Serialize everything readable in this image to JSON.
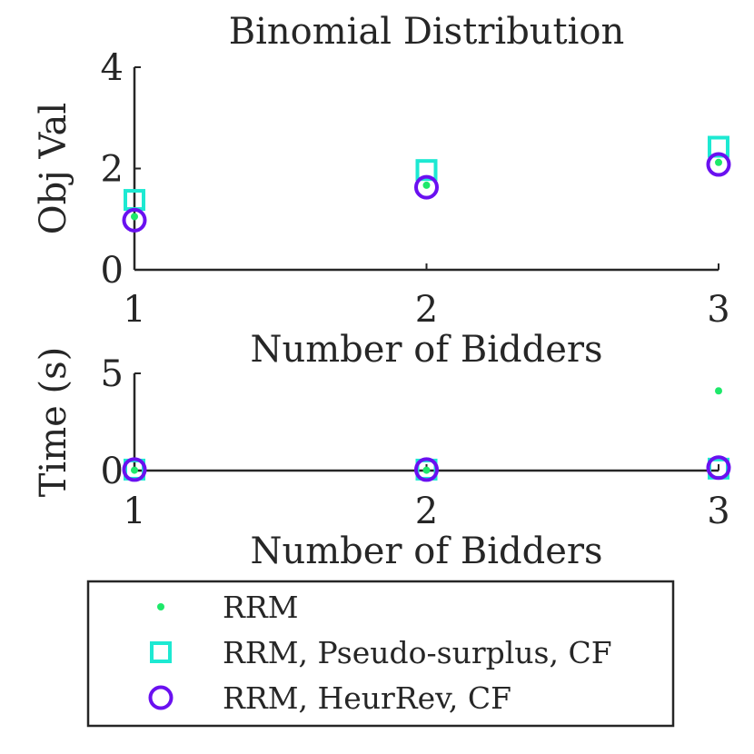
{
  "chart_data": [
    {
      "type": "scatter",
      "title": "Binomial Distribution",
      "xlabel": "Number of Bidders",
      "ylabel": "Obj Val",
      "xlim": [
        1,
        3
      ],
      "ylim": [
        0,
        4
      ],
      "xticks": [
        "1",
        "2",
        "3"
      ],
      "yticks": [
        "0",
        "2",
        "4"
      ],
      "x": [
        1,
        2,
        3
      ],
      "series": [
        {
          "name": "RRM",
          "marker": "dot",
          "color": "#1ee86a",
          "values": [
            1.05,
            1.67,
            2.12
          ]
        },
        {
          "name": "RRM, Pseudo-surplus, CF",
          "marker": "square",
          "color": "#1de9d2",
          "values": [
            1.38,
            1.97,
            2.43
          ]
        },
        {
          "name": "RRM, HeurRev, CF",
          "marker": "circle",
          "color": "#6a10f0",
          "values": [
            0.98,
            1.63,
            2.08
          ]
        }
      ]
    },
    {
      "type": "scatter",
      "title": "",
      "xlabel": "Number of Bidders",
      "ylabel": "Time (s)",
      "xlim": [
        1,
        3
      ],
      "ylim": [
        0,
        5
      ],
      "xticks": [
        "1",
        "2",
        "3"
      ],
      "yticks": [
        "0",
        "5"
      ],
      "x": [
        1,
        2,
        3
      ],
      "series": [
        {
          "name": "RRM",
          "marker": "dot",
          "color": "#1ee86a",
          "values": [
            0.02,
            0.02,
            4.1
          ]
        },
        {
          "name": "RRM, Pseudo-surplus, CF",
          "marker": "square",
          "color": "#1de9d2",
          "values": [
            0.05,
            0.05,
            0.1
          ]
        },
        {
          "name": "RRM, HeurRev, CF",
          "marker": "circle",
          "color": "#6a10f0",
          "values": [
            0.05,
            0.05,
            0.15
          ]
        }
      ]
    }
  ],
  "legend": {
    "position": "bottom",
    "entries": [
      "RRM",
      "RRM, Pseudo-surplus, CF",
      "RRM, HeurRev, CF"
    ]
  }
}
